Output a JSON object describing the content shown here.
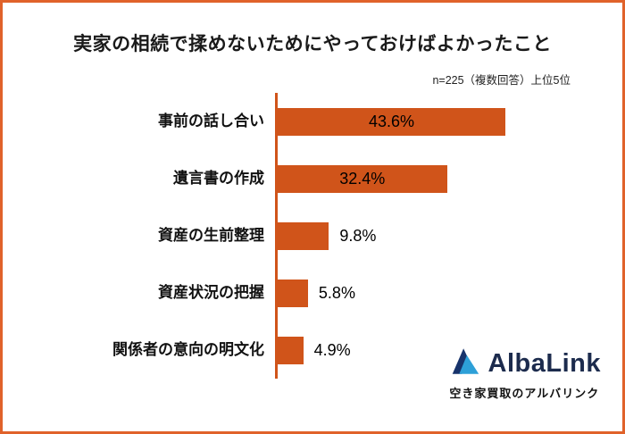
{
  "title": "実家の相続で揉めないためにやっておけばよかったこと",
  "note": "n=225（複数回答）上位5位",
  "colors": {
    "bar": "#d0541a",
    "frame_border": "#e0622a",
    "axis": "#d0541a",
    "brand_navy": "#1c2b4d",
    "brand_light_blue": "#2da0d8"
  },
  "chart_data": {
    "type": "bar",
    "orientation": "horizontal",
    "title": "実家の相続で揉めないためにやっておけばよかったこと",
    "subtitle": "n=225（複数回答）上位5位",
    "categories": [
      "事前の話し合い",
      "遺言書の作成",
      "資産の生前整理",
      "資産状況の把握",
      "関係者の意向の明文化"
    ],
    "values": [
      43.6,
      32.4,
      9.8,
      5.8,
      4.9
    ],
    "value_labels": [
      "43.6%",
      "32.4%",
      "9.8%",
      "5.8%",
      "4.9%"
    ],
    "label_placement": [
      "inside",
      "inside",
      "outside",
      "outside",
      "outside"
    ],
    "xlim": [
      0,
      50
    ],
    "grid": false,
    "legend": false,
    "bar_color": "#d0541a"
  },
  "logo": {
    "brand": "AlbaLink",
    "tagline": "空き家買取のアルバリンク",
    "icon": "albalink-triangle-logo-icon"
  }
}
